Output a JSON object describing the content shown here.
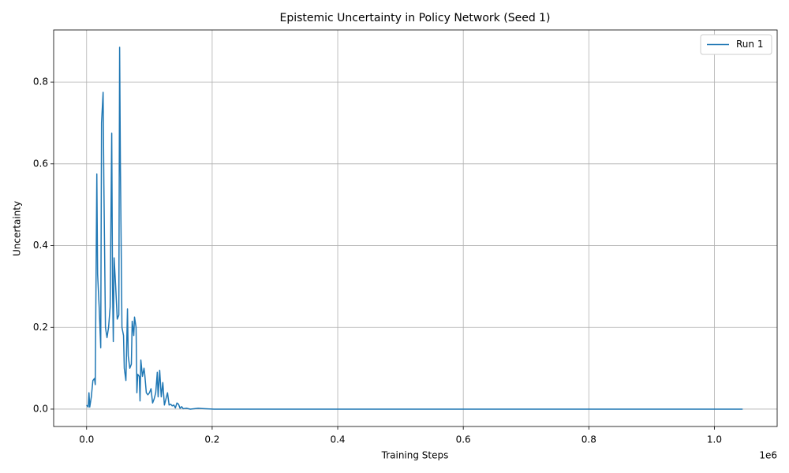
{
  "chart_data": {
    "type": "line",
    "title": "Epistemic Uncertainty in Policy Network (Seed 1)",
    "x_label": "Training Steps",
    "y_label": "Uncertainty",
    "x_offset_label": "1e6",
    "legend_position": "upper right",
    "grid": true,
    "xlim": [
      -52500,
      1100000
    ],
    "ylim": [
      -0.0425,
      0.9275
    ],
    "xticks": [
      {
        "value": 0,
        "label": "0.0"
      },
      {
        "value": 200000,
        "label": "0.2"
      },
      {
        "value": 400000,
        "label": "0.4"
      },
      {
        "value": 600000,
        "label": "0.6"
      },
      {
        "value": 800000,
        "label": "0.8"
      },
      {
        "value": 1000000,
        "label": "1.0"
      }
    ],
    "yticks": [
      {
        "value": 0,
        "label": "0.0"
      },
      0.2,
      0.4,
      0.6,
      0.8
    ],
    "x": [
      0,
      2500,
      3750,
      5000,
      7500,
      10000,
      12500,
      13770,
      16270,
      17520,
      20000,
      22500,
      23780,
      26280,
      27500,
      30000,
      32500,
      35000,
      37500,
      40000,
      41300,
      42500,
      43800,
      46300,
      48800,
      51300,
      52600,
      53800,
      56300,
      58800,
      60000,
      62600,
      65100,
      66300,
      68800,
      71300,
      72600,
      75100,
      76300,
      78800,
      80100,
      81400,
      83900,
      85100,
      86400,
      88900,
      91400,
      92600,
      95100,
      97600,
      100100,
      102600,
      105100,
      107600,
      110100,
      112600,
      113900,
      116400,
      118900,
      121400,
      123900,
      126400,
      128900,
      131400,
      133900,
      136400,
      138900,
      141400,
      143900,
      146400,
      148900,
      151400,
      153900,
      159000,
      165200,
      177700,
      190200,
      202800,
      1045000
    ],
    "series": [
      {
        "name": "Run 1",
        "color": "#1f77b4",
        "values": [
          0.01,
          0.005,
          0.04,
          0.005,
          0.03,
          0.07,
          0.075,
          0.06,
          0.575,
          0.33,
          0.25,
          0.15,
          0.7,
          0.775,
          0.55,
          0.2,
          0.175,
          0.2,
          0.25,
          0.675,
          0.3,
          0.165,
          0.37,
          0.3,
          0.22,
          0.23,
          0.885,
          0.6,
          0.2,
          0.18,
          0.1,
          0.07,
          0.245,
          0.13,
          0.1,
          0.11,
          0.215,
          0.18,
          0.225,
          0.2,
          0.04,
          0.085,
          0.08,
          0.02,
          0.12,
          0.08,
          0.1,
          0.085,
          0.04,
          0.035,
          0.04,
          0.05,
          0.015,
          0.025,
          0.04,
          0.09,
          0.03,
          0.095,
          0.03,
          0.065,
          0.01,
          0.025,
          0.04,
          0.01,
          0.012,
          0.008,
          0.01,
          0.003,
          0.015,
          0.012,
          0.002,
          0.006,
          0.001,
          0.002,
          0,
          0.002,
          0.001,
          0,
          0
        ]
      }
    ]
  }
}
